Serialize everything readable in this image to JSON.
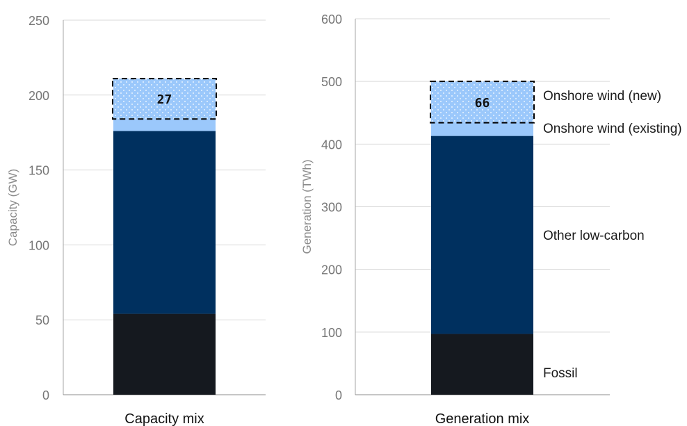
{
  "chart_data": [
    {
      "type": "bar",
      "stacked": true,
      "categories": [
        "Capacity mix"
      ],
      "ylabel": "Capacity (GW)",
      "ylim": [
        0,
        250
      ],
      "yticks": [
        0,
        50,
        100,
        150,
        200,
        250
      ],
      "grid": true,
      "series": [
        {
          "values": [
            54
          ],
          "color": "#15191f"
        },
        {
          "values": [
            122
          ],
          "color": "#00305f"
        },
        {
          "values": [
            8
          ],
          "color": "#9bc8fb"
        },
        {
          "values": [
            27
          ],
          "color": "#9bc8fb",
          "pattern": "dotted",
          "outline": "dashed"
        }
      ],
      "data_labels": [
        {
          "series": 3,
          "text": "27"
        }
      ]
    },
    {
      "type": "bar",
      "stacked": true,
      "categories": [
        "Generation mix"
      ],
      "ylabel": "Generation (TWh)",
      "ylim": [
        0,
        600
      ],
      "yticks": [
        0,
        100,
        200,
        300,
        400,
        500,
        600
      ],
      "grid": true,
      "series": [
        {
          "name": "Fossil",
          "values": [
            97
          ],
          "color": "#15191f"
        },
        {
          "name": "Other low-carbon",
          "values": [
            316
          ],
          "color": "#00305f"
        },
        {
          "name": "Onshore wind (existing)",
          "values": [
            21
          ],
          "color": "#9bc8fb"
        },
        {
          "name": "Onshore wind (new)",
          "values": [
            66
          ],
          "color": "#9bc8fb",
          "pattern": "dotted",
          "outline": "dashed"
        }
      ],
      "data_labels": [
        {
          "series": 3,
          "text": "66"
        }
      ]
    }
  ]
}
